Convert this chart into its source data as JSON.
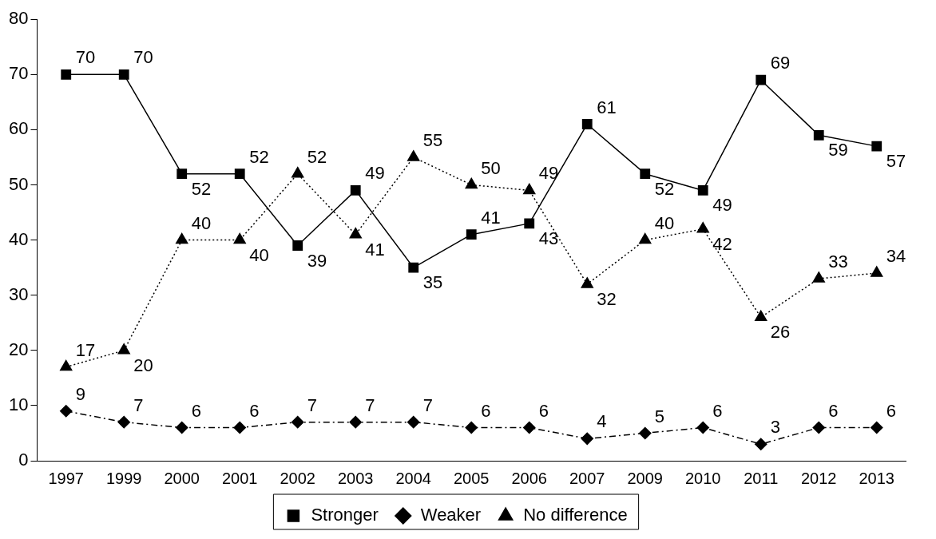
{
  "chart_data": {
    "type": "line",
    "categories": [
      "1997",
      "1999",
      "2000",
      "2001",
      "2002",
      "2003",
      "2004",
      "2005",
      "2006",
      "2007",
      "2009",
      "2010",
      "2011",
      "2012",
      "2013"
    ],
    "series": [
      {
        "name": "Stronger",
        "color": "#000000",
        "marker": "square",
        "line_style": "solid",
        "values": [
          70,
          70,
          52,
          52,
          39,
          49,
          35,
          41,
          43,
          61,
          52,
          49,
          69,
          59,
          57
        ]
      },
      {
        "name": "Weaker",
        "color": "#000000",
        "marker": "diamond",
        "line_style": "dashed",
        "values": [
          9,
          7,
          6,
          6,
          7,
          7,
          7,
          6,
          6,
          4,
          5,
          6,
          3,
          6,
          6
        ]
      },
      {
        "name": "No difference",
        "color": "#000000",
        "marker": "triangle",
        "line_style": "dotted",
        "values": [
          17,
          20,
          40,
          40,
          52,
          41,
          55,
          50,
          49,
          32,
          40,
          42,
          26,
          33,
          34
        ]
      }
    ],
    "ylim": [
      0,
      80
    ],
    "yticks": [
      0,
      10,
      20,
      30,
      40,
      50,
      60,
      70,
      80
    ],
    "grid": false,
    "legend": "bottom",
    "data_labels": true
  }
}
